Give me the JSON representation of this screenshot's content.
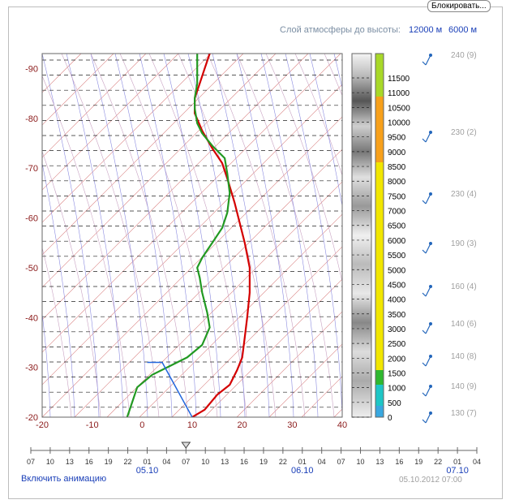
{
  "header": {
    "lock_button": "Блокировать...",
    "layer_label": "Слой атмосферы до высоты:",
    "options": [
      "12000 м",
      "6000 м"
    ]
  },
  "chart_data": {
    "type": "line",
    "chart": "skew-t",
    "y_ticks": [
      -90,
      -80,
      -70,
      -60,
      -50,
      -40,
      -30,
      -20
    ],
    "x_ticks": [
      -20,
      -10,
      0,
      10,
      20,
      30,
      40
    ],
    "xlim": [
      -20,
      40
    ],
    "ylim": [
      -20,
      -93
    ],
    "series": [
      {
        "color": "#d40000",
        "points": [
          [
            10,
            -20
          ],
          [
            12.5,
            -21.5
          ],
          [
            15,
            -24.5
          ],
          [
            17.5,
            -26.5
          ],
          [
            19,
            -29.5
          ],
          [
            20,
            -32
          ],
          [
            20.5,
            -36
          ],
          [
            21,
            -40
          ],
          [
            21.5,
            -45
          ],
          [
            21.5,
            -50
          ],
          [
            20.5,
            -55
          ],
          [
            19.5,
            -59
          ],
          [
            18.5,
            -63
          ],
          [
            17,
            -68
          ],
          [
            16,
            -71
          ],
          [
            14,
            -74
          ],
          [
            12,
            -77.5
          ],
          [
            10.5,
            -81
          ],
          [
            10.5,
            -84
          ],
          [
            11.5,
            -87
          ],
          [
            12.5,
            -90
          ],
          [
            13.5,
            -93
          ]
        ]
      },
      {
        "color": "#229922",
        "points": [
          [
            -3,
            -20
          ],
          [
            -2,
            -23
          ],
          [
            -1,
            -26
          ],
          [
            2,
            -28.5
          ],
          [
            5,
            -30
          ],
          [
            9,
            -32
          ],
          [
            12,
            -34.5
          ],
          [
            13.5,
            -38
          ],
          [
            13,
            -41
          ],
          [
            12,
            -45
          ],
          [
            11.5,
            -48
          ],
          [
            11,
            -50
          ],
          [
            12,
            -52
          ],
          [
            14,
            -55
          ],
          [
            16,
            -58
          ],
          [
            17,
            -61
          ],
          [
            17.5,
            -65
          ],
          [
            17,
            -69
          ],
          [
            16.5,
            -72
          ],
          [
            14,
            -74.5
          ],
          [
            12,
            -77
          ],
          [
            11,
            -79
          ],
          [
            10.5,
            -82
          ],
          [
            10.5,
            -84
          ],
          [
            11,
            -87
          ],
          [
            11,
            -90
          ],
          [
            11,
            -93
          ]
        ]
      },
      {
        "color": "#2266dd",
        "points": [
          [
            10,
            -20
          ],
          [
            4,
            -31
          ],
          [
            1,
            -31
          ]
        ]
      }
    ],
    "color_scale": {
      "labels": [
        "11500",
        "11000",
        "10500",
        "10000",
        "9500",
        "9000",
        "8500",
        "8000",
        "7500",
        "7000",
        "6500",
        "6000",
        "5500",
        "5000",
        "4500",
        "4000",
        "3500",
        "3000",
        "2500",
        "2000",
        "1500",
        "1000",
        "500",
        "0"
      ]
    },
    "wind": [
      {
        "label": "240 (9)"
      },
      {
        "label": "230 (2)"
      },
      {
        "label": "230 (4)"
      },
      {
        "label": "190 (3)"
      },
      {
        "label": "160 (4)"
      },
      {
        "label": "140 (6)"
      },
      {
        "label": "140 (8)"
      },
      {
        "label": "140 (9)"
      },
      {
        "label": "130 (7)"
      }
    ],
    "timeline": {
      "hours": [
        "07",
        "10",
        "13",
        "16",
        "19",
        "22",
        "01",
        "04",
        "07",
        "10",
        "13",
        "16",
        "19",
        "22",
        "01",
        "04",
        "07",
        "10",
        "13",
        "16",
        "19",
        "22",
        "01",
        "04"
      ],
      "dates": [
        {
          "label": "05.10"
        },
        {
          "label": "06.10"
        },
        {
          "label": "07.10"
        }
      ],
      "marker_index": 8
    }
  },
  "footer": {
    "animation_link": "Включить анимацию",
    "datetime": "05.10.2012 07:00"
  }
}
